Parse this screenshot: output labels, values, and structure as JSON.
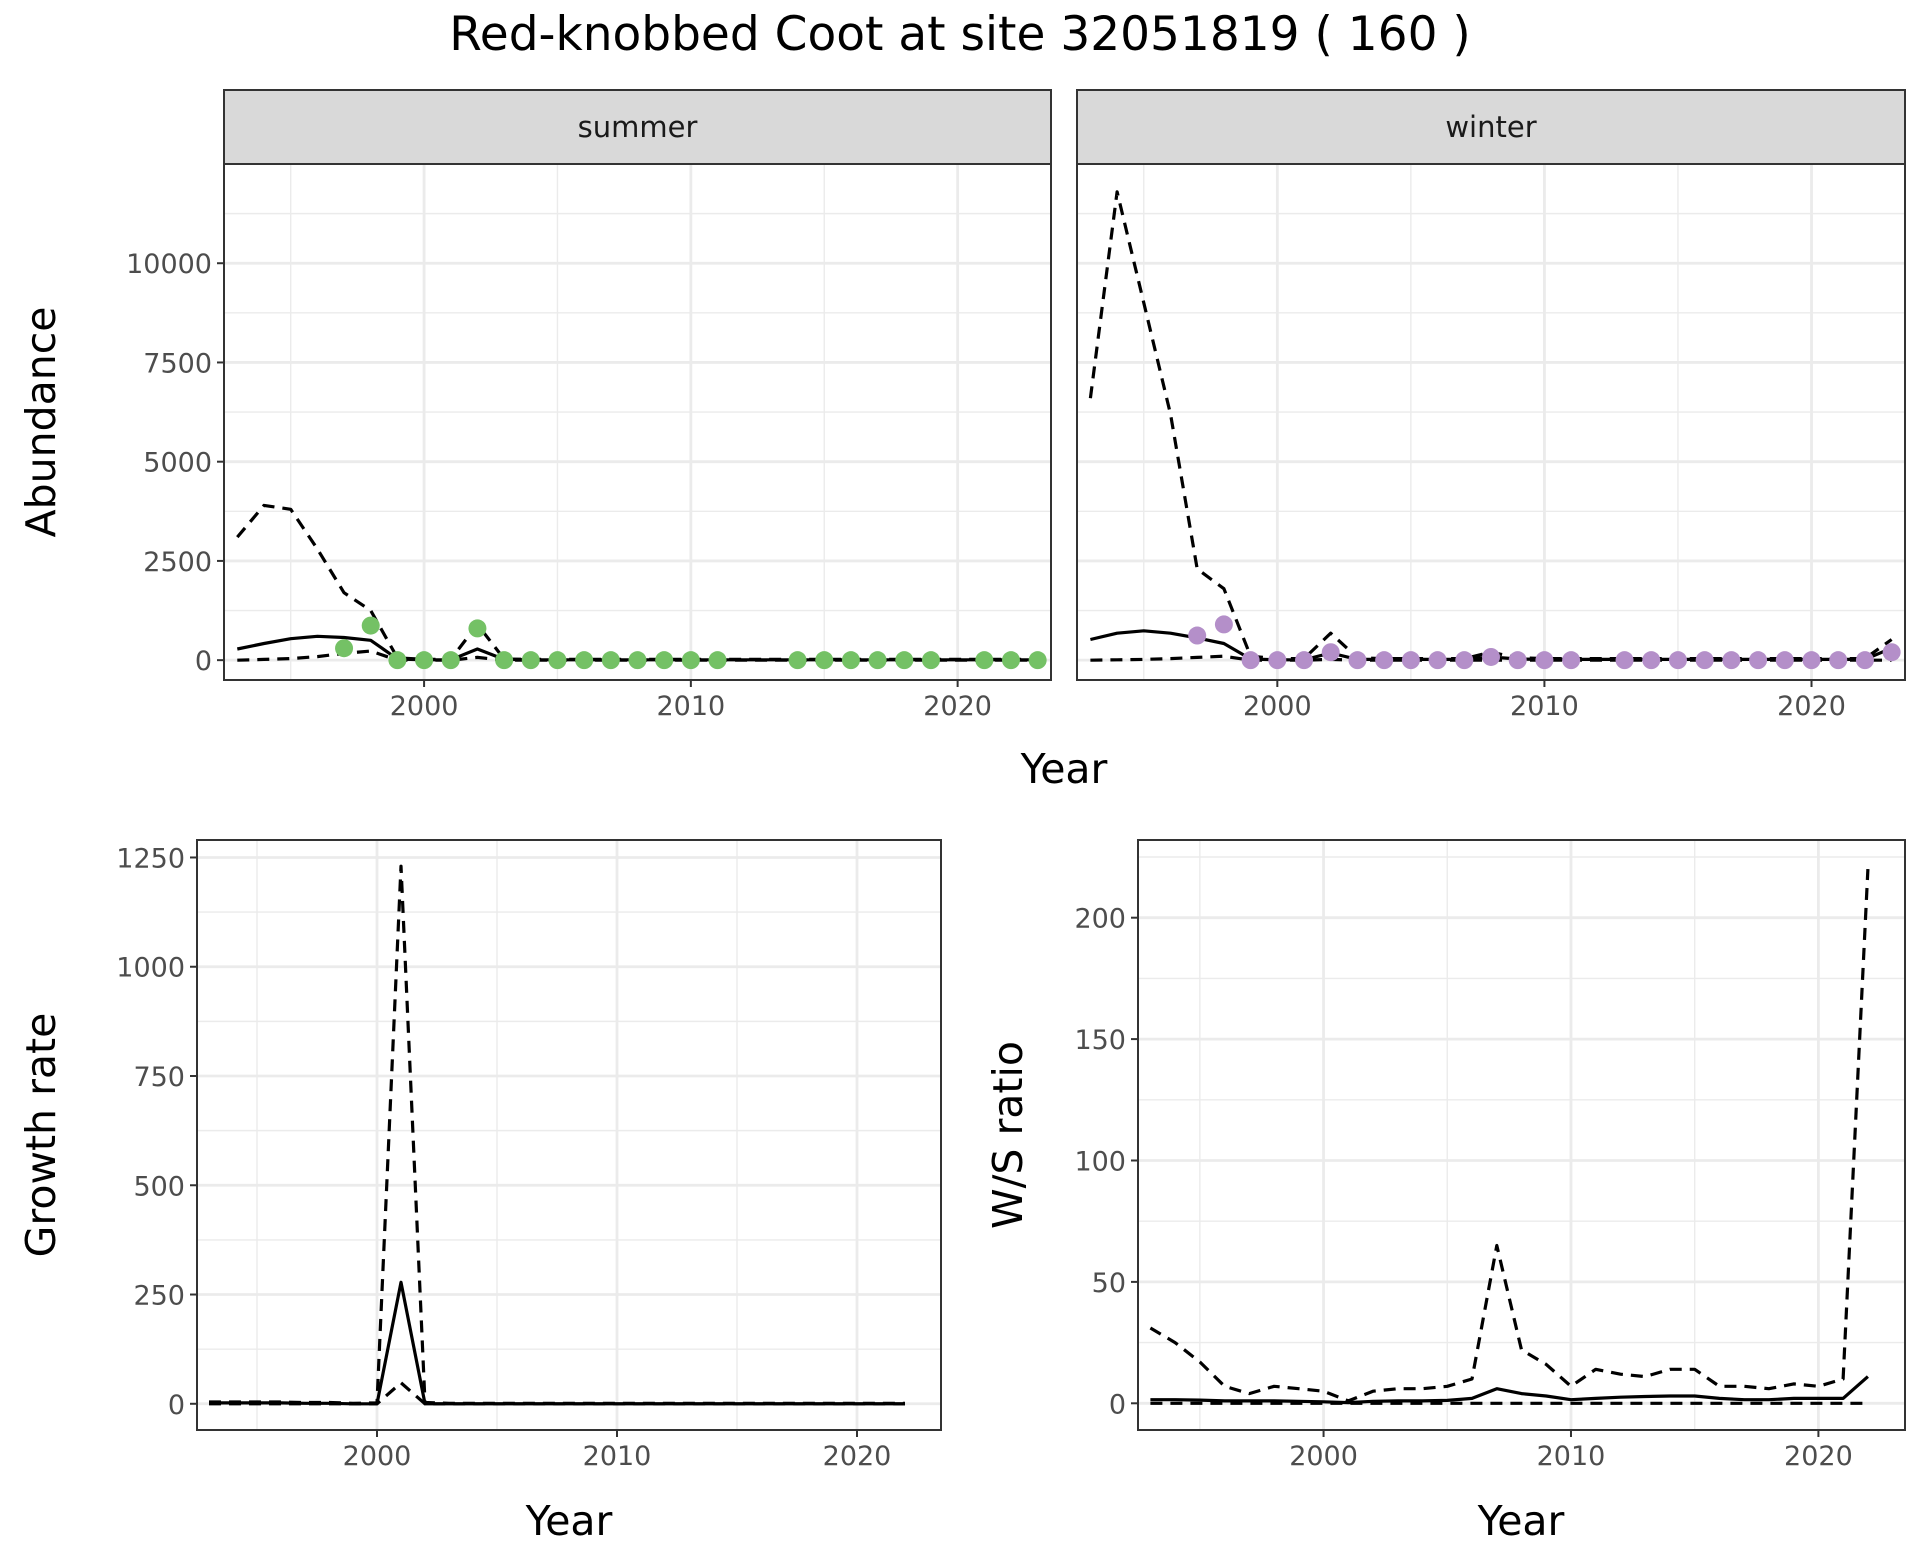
{
  "title": "Red-knobbed Coot at site 32051819 ( 160 )",
  "colors": {
    "summer_points": "#74c165",
    "winter_points": "#b48fc9",
    "lines": "#000000",
    "strip_bg": "#d9d9d9"
  },
  "chart_data": [
    {
      "id": "abundance",
      "type": "line",
      "xlabel": "Year",
      "ylabel": "Abundance",
      "xlim": [
        1992.5,
        2023.5
      ],
      "ylim": [
        -500,
        12500
      ],
      "x_ticks": [
        2000,
        2010,
        2020
      ],
      "y_ticks": [
        0,
        2500,
        5000,
        7500,
        10000
      ],
      "grid": true,
      "facets": [
        {
          "label": "summer",
          "point_color": "#74c165",
          "series": [
            {
              "style": "solid",
              "x": [
                1993,
                1994,
                1995,
                1996,
                1997,
                1998,
                1999,
                2000,
                2001,
                2002,
                2003,
                2004,
                2005,
                2006,
                2007,
                2008,
                2009,
                2010,
                2011,
                2012,
                2013,
                2014,
                2015,
                2016,
                2017,
                2018,
                2019,
                2020,
                2021,
                2022,
                2023
              ],
              "y": [
                280,
                420,
                540,
                600,
                570,
                500,
                30,
                10,
                10,
                280,
                20,
                10,
                10,
                10,
                10,
                10,
                10,
                10,
                10,
                10,
                10,
                10,
                10,
                10,
                10,
                10,
                10,
                10,
                10,
                10,
                10
              ]
            },
            {
              "style": "dashed",
              "x": [
                1993,
                1994,
                1995,
                1996,
                1997,
                1998,
                1999,
                2000,
                2001,
                2002,
                2003,
                2004,
                2005,
                2006,
                2007,
                2008,
                2009,
                2010,
                2011,
                2012,
                2013,
                2014,
                2015,
                2016,
                2017,
                2018,
                2019,
                2020,
                2021,
                2022,
                2023
              ],
              "y": [
                3100,
                3900,
                3800,
                2800,
                1700,
                1250,
                60,
                20,
                20,
                900,
                30,
                20,
                20,
                20,
                20,
                20,
                20,
                20,
                20,
                20,
                20,
                20,
                20,
                20,
                20,
                20,
                20,
                20,
                20,
                20,
                20
              ]
            },
            {
              "style": "dashed",
              "x": [
                1993,
                1994,
                1995,
                1996,
                1997,
                1998,
                1999,
                2000,
                2001,
                2002,
                2003,
                2004,
                2005,
                2006,
                2007,
                2008,
                2009,
                2010,
                2011,
                2012,
                2013,
                2014,
                2015,
                2016,
                2017,
                2018,
                2019,
                2020,
                2021,
                2022,
                2023
              ],
              "y": [
                0,
                20,
                40,
                90,
                170,
                230,
                0,
                0,
                0,
                70,
                0,
                0,
                0,
                0,
                0,
                0,
                0,
                0,
                0,
                0,
                0,
                0,
                0,
                0,
                0,
                0,
                0,
                0,
                0,
                0,
                0
              ]
            }
          ],
          "points": {
            "x": [
              1997,
              1998,
              1999,
              2000,
              2001,
              2002,
              2003,
              2004,
              2005,
              2006,
              2007,
              2008,
              2009,
              2010,
              2011,
              2014,
              2015,
              2016,
              2017,
              2018,
              2019,
              2021,
              2022,
              2023
            ],
            "y": [
              300,
              870,
              0,
              0,
              0,
              800,
              0,
              0,
              0,
              0,
              0,
              0,
              0,
              0,
              0,
              0,
              0,
              0,
              0,
              0,
              0,
              0,
              0,
              0
            ]
          }
        },
        {
          "label": "winter",
          "point_color": "#b48fc9",
          "series": [
            {
              "style": "solid",
              "x": [
                1993,
                1994,
                1995,
                1996,
                1997,
                1998,
                1999,
                2000,
                2001,
                2002,
                2003,
                2004,
                2005,
                2006,
                2007,
                2008,
                2009,
                2010,
                2011,
                2012,
                2013,
                2014,
                2015,
                2016,
                2017,
                2018,
                2019,
                2020,
                2021,
                2022,
                2023
              ],
              "y": [
                520,
                680,
                740,
                680,
                560,
                420,
                30,
                10,
                10,
                180,
                20,
                20,
                20,
                20,
                20,
                80,
                30,
                20,
                20,
                20,
                20,
                20,
                20,
                20,
                20,
                20,
                20,
                20,
                20,
                20,
                300
              ]
            },
            {
              "style": "dashed",
              "x": [
                1993,
                1994,
                1995,
                1996,
                1997,
                1998,
                1999,
                2000,
                2001,
                2002,
                2003,
                2004,
                2005,
                2006,
                2007,
                2008,
                2009,
                2010,
                2011,
                2012,
                2013,
                2014,
                2015,
                2016,
                2017,
                2018,
                2019,
                2020,
                2021,
                2022,
                2023
              ],
              "y": [
                6600,
                11800,
                9000,
                6200,
                2300,
                1800,
                100,
                40,
                40,
                680,
                60,
                40,
                40,
                40,
                40,
                200,
                60,
                40,
                40,
                40,
                40,
                40,
                40,
                40,
                40,
                40,
                40,
                40,
                40,
                40,
                520
              ]
            },
            {
              "style": "dashed",
              "x": [
                1993,
                1994,
                1995,
                1996,
                1997,
                1998,
                1999,
                2000,
                2001,
                2002,
                2003,
                2004,
                2005,
                2006,
                2007,
                2008,
                2009,
                2010,
                2011,
                2012,
                2013,
                2014,
                2015,
                2016,
                2017,
                2018,
                2019,
                2020,
                2021,
                2022,
                2023
              ],
              "y": [
                0,
                10,
                20,
                40,
                70,
                100,
                0,
                0,
                0,
                20,
                0,
                0,
                0,
                0,
                0,
                0,
                0,
                0,
                0,
                0,
                0,
                0,
                0,
                0,
                0,
                0,
                0,
                0,
                0,
                0,
                0
              ]
            }
          ],
          "points": {
            "x": [
              1997,
              1998,
              1999,
              2000,
              2001,
              2002,
              2003,
              2004,
              2005,
              2006,
              2007,
              2008,
              2009,
              2010,
              2011,
              2013,
              2014,
              2015,
              2016,
              2017,
              2018,
              2019,
              2020,
              2021,
              2022,
              2023
            ],
            "y": [
              620,
              900,
              0,
              0,
              0,
              200,
              0,
              0,
              0,
              0,
              0,
              80,
              0,
              0,
              0,
              0,
              0,
              0,
              0,
              0,
              0,
              0,
              0,
              0,
              0,
              200
            ]
          }
        }
      ]
    },
    {
      "id": "growth",
      "type": "line",
      "xlabel": "Year",
      "ylabel": "Growth rate",
      "xlim": [
        1992.5,
        2023.5
      ],
      "ylim": [
        -60,
        1290
      ],
      "x_ticks": [
        2000,
        2010,
        2020
      ],
      "y_ticks": [
        0,
        250,
        500,
        750,
        1000,
        1250
      ],
      "grid": true,
      "series": [
        {
          "style": "solid",
          "x": [
            1993,
            1994,
            1995,
            1996,
            1997,
            1998,
            1999,
            2000,
            2001,
            2002,
            2003,
            2004,
            2005,
            2006,
            2007,
            2008,
            2009,
            2010,
            2011,
            2012,
            2013,
            2014,
            2015,
            2016,
            2017,
            2018,
            2019,
            2020,
            2021,
            2022
          ],
          "y": [
            2,
            2,
            2,
            2,
            1,
            1,
            0,
            0,
            278,
            0,
            0,
            0,
            0,
            0,
            0,
            0,
            0,
            0,
            0,
            0,
            0,
            0,
            0,
            0,
            0,
            0,
            0,
            0,
            0,
            0
          ]
        },
        {
          "style": "dashed",
          "x": [
            1993,
            1994,
            1995,
            1996,
            1997,
            1998,
            1999,
            2000,
            2001,
            2002,
            2003,
            2004,
            2005,
            2006,
            2007,
            2008,
            2009,
            2010,
            2011,
            2012,
            2013,
            2014,
            2015,
            2016,
            2017,
            2018,
            2019,
            2020,
            2021,
            2022
          ],
          "y": [
            4,
            4,
            4,
            4,
            3,
            3,
            1,
            2,
            1230,
            3,
            1,
            1,
            1,
            1,
            1,
            1,
            1,
            1,
            1,
            1,
            1,
            1,
            1,
            1,
            1,
            1,
            1,
            1,
            1,
            1
          ]
        },
        {
          "style": "dashed",
          "x": [
            1993,
            1994,
            1995,
            1996,
            1997,
            1998,
            1999,
            2000,
            2001,
            2002,
            2003,
            2004,
            2005,
            2006,
            2007,
            2008,
            2009,
            2010,
            2011,
            2012,
            2013,
            2014,
            2015,
            2016,
            2017,
            2018,
            2019,
            2020,
            2021,
            2022
          ],
          "y": [
            0,
            0,
            0,
            0,
            0,
            0,
            0,
            0,
            48,
            0,
            0,
            0,
            0,
            0,
            0,
            0,
            0,
            0,
            0,
            0,
            0,
            0,
            0,
            0,
            0,
            0,
            0,
            0,
            0,
            0
          ]
        }
      ]
    },
    {
      "id": "ws",
      "type": "line",
      "xlabel": "Year",
      "ylabel": "W/S ratio",
      "xlim": [
        1992.5,
        2023.5
      ],
      "ylim": [
        -11,
        232
      ],
      "x_ticks": [
        2000,
        2010,
        2020
      ],
      "y_ticks": [
        0,
        50,
        100,
        150,
        200
      ],
      "grid": true,
      "series": [
        {
          "style": "solid",
          "x": [
            1993,
            1994,
            1995,
            1996,
            1997,
            1998,
            1999,
            2000,
            2001,
            2002,
            2003,
            2004,
            2005,
            2006,
            2007,
            2008,
            2009,
            2010,
            2011,
            2012,
            2013,
            2014,
            2015,
            2016,
            2017,
            2018,
            2019,
            2020,
            2021,
            2022
          ],
          "y": [
            1.5,
            1.5,
            1.3,
            1,
            1,
            1,
            0.8,
            0.6,
            0.3,
            0.8,
            1,
            1,
            1.2,
            2,
            6,
            4,
            3,
            1.5,
            2,
            2.5,
            2.8,
            3,
            3,
            2,
            1.5,
            1.5,
            2,
            2,
            2,
            11
          ]
        },
        {
          "style": "dashed",
          "x": [
            1993,
            1994,
            1995,
            1996,
            1997,
            1998,
            1999,
            2000,
            2001,
            2002,
            2003,
            2004,
            2005,
            2006,
            2007,
            2008,
            2009,
            2010,
            2011,
            2012,
            2013,
            2014,
            2015,
            2016,
            2017,
            2018,
            2019,
            2020,
            2021,
            2022
          ],
          "y": [
            31,
            25,
            17,
            7,
            4,
            7,
            6,
            5,
            1,
            5,
            6,
            6,
            7,
            10,
            65,
            22,
            16,
            7,
            14,
            12,
            11,
            14,
            14,
            7,
            7,
            6,
            8,
            7,
            10,
            220
          ]
        },
        {
          "style": "dashed",
          "x": [
            1993,
            1994,
            1995,
            1996,
            1997,
            1998,
            1999,
            2000,
            2001,
            2002,
            2003,
            2004,
            2005,
            2006,
            2007,
            2008,
            2009,
            2010,
            2011,
            2012,
            2013,
            2014,
            2015,
            2016,
            2017,
            2018,
            2019,
            2020,
            2021,
            2022
          ],
          "y": [
            0,
            0,
            0,
            0,
            0,
            0,
            0,
            0,
            0,
            0,
            0,
            0,
            0,
            0,
            0,
            0,
            0,
            0,
            0,
            0,
            0,
            0,
            0,
            0,
            0,
            0,
            0,
            0,
            0,
            0
          ]
        }
      ]
    }
  ]
}
